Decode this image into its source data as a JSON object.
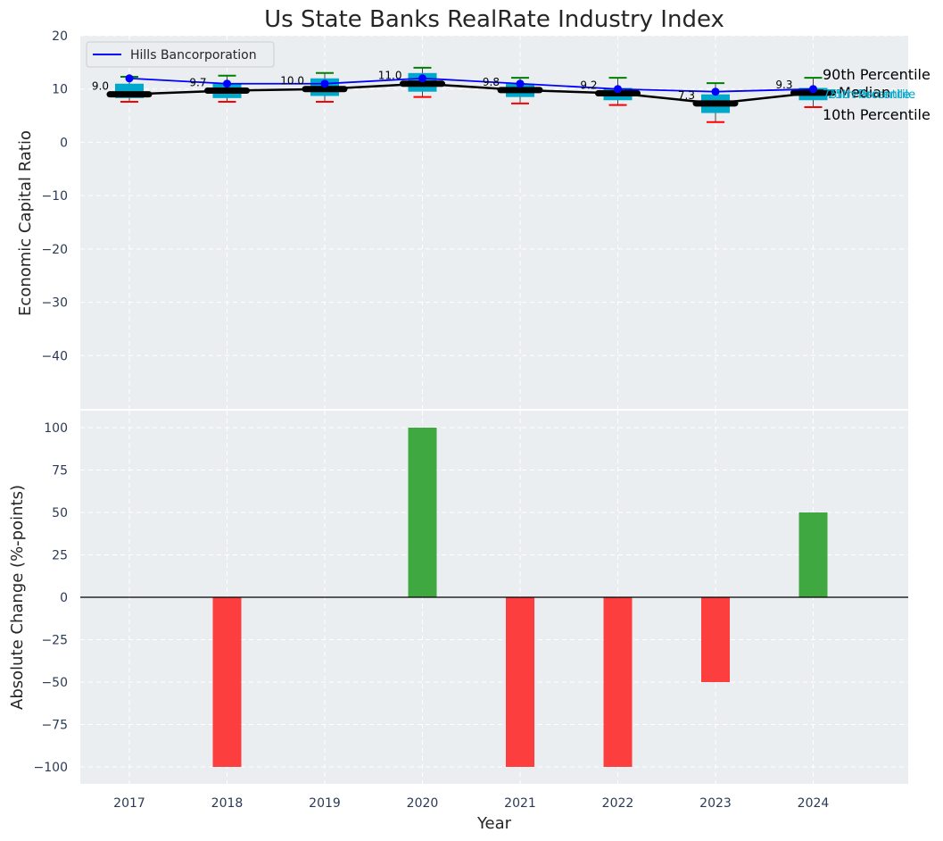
{
  "chart_data": [
    {
      "type": "box",
      "title": "Us State Banks RealRate Industry Index",
      "ylabel": "Economic Capital Ratio",
      "ylim": [
        -50,
        20
      ],
      "yticks": [
        20,
        10,
        0,
        -10,
        -20,
        -30,
        -40
      ],
      "ytick_labels": [
        "20",
        "10",
        "0",
        "−10",
        "−20",
        "−30",
        "−40"
      ],
      "categories": [
        "2017",
        "2018",
        "2019",
        "2020",
        "2021",
        "2022",
        "2023",
        "2024"
      ],
      "p10": [
        7.6,
        7.6,
        7.6,
        8.5,
        7.3,
        7.0,
        3.8,
        6.6
      ],
      "p25": [
        8.3,
        8.3,
        8.7,
        9.5,
        8.5,
        7.9,
        5.5,
        7.9
      ],
      "median": [
        9.0,
        9.7,
        10.0,
        11.0,
        9.8,
        9.2,
        7.3,
        9.3
      ],
      "p75": [
        11.0,
        11.0,
        12.0,
        13.0,
        11.0,
        10.2,
        9.0,
        10.2
      ],
      "p90": [
        12.3,
        12.5,
        13.0,
        14.0,
        12.1,
        12.1,
        11.1,
        12.1
      ],
      "median_labels": [
        "9.0",
        "9.7",
        "10.0",
        "11.0",
        "9.8",
        "9.2",
        "7.3",
        "9.3"
      ],
      "series": [
        {
          "name": "Hills Bancorporation",
          "values": [
            12.0,
            11.0,
            11.0,
            12.0,
            11.0,
            10.0,
            9.5,
            10.0
          ],
          "color": "#0000ff"
        }
      ],
      "median_line_color": "#000000",
      "box_color": "#00a8cc",
      "p90_color": "#008000",
      "p10_color": "#ff0000",
      "percentile_labels": {
        "p90": "90th Percentile",
        "p75": "75th Percentile",
        "median": "Median",
        "p25": "25th Percentile",
        "p10": "10th Percentile"
      },
      "legend_position": "upper-left"
    },
    {
      "type": "bar",
      "xlabel": "Year",
      "ylabel": "Absolute Change (%-points)",
      "ylim": [
        -110,
        110
      ],
      "yticks": [
        100,
        75,
        50,
        25,
        0,
        -25,
        -50,
        -75,
        -100
      ],
      "ytick_labels": [
        "100",
        "75",
        "50",
        "25",
        "0",
        "−25",
        "−50",
        "−75",
        "−100"
      ],
      "categories": [
        "2017",
        "2018",
        "2019",
        "2020",
        "2021",
        "2022",
        "2023",
        "2024"
      ],
      "values": [
        0,
        -100,
        0,
        100,
        -100,
        -100,
        -50,
        50
      ],
      "positive_color": "#2ca02c",
      "negative_color": "#ff2a2a"
    }
  ],
  "colors": {
    "plot_bg": "#eaeef0",
    "grid": "#ffffff"
  }
}
